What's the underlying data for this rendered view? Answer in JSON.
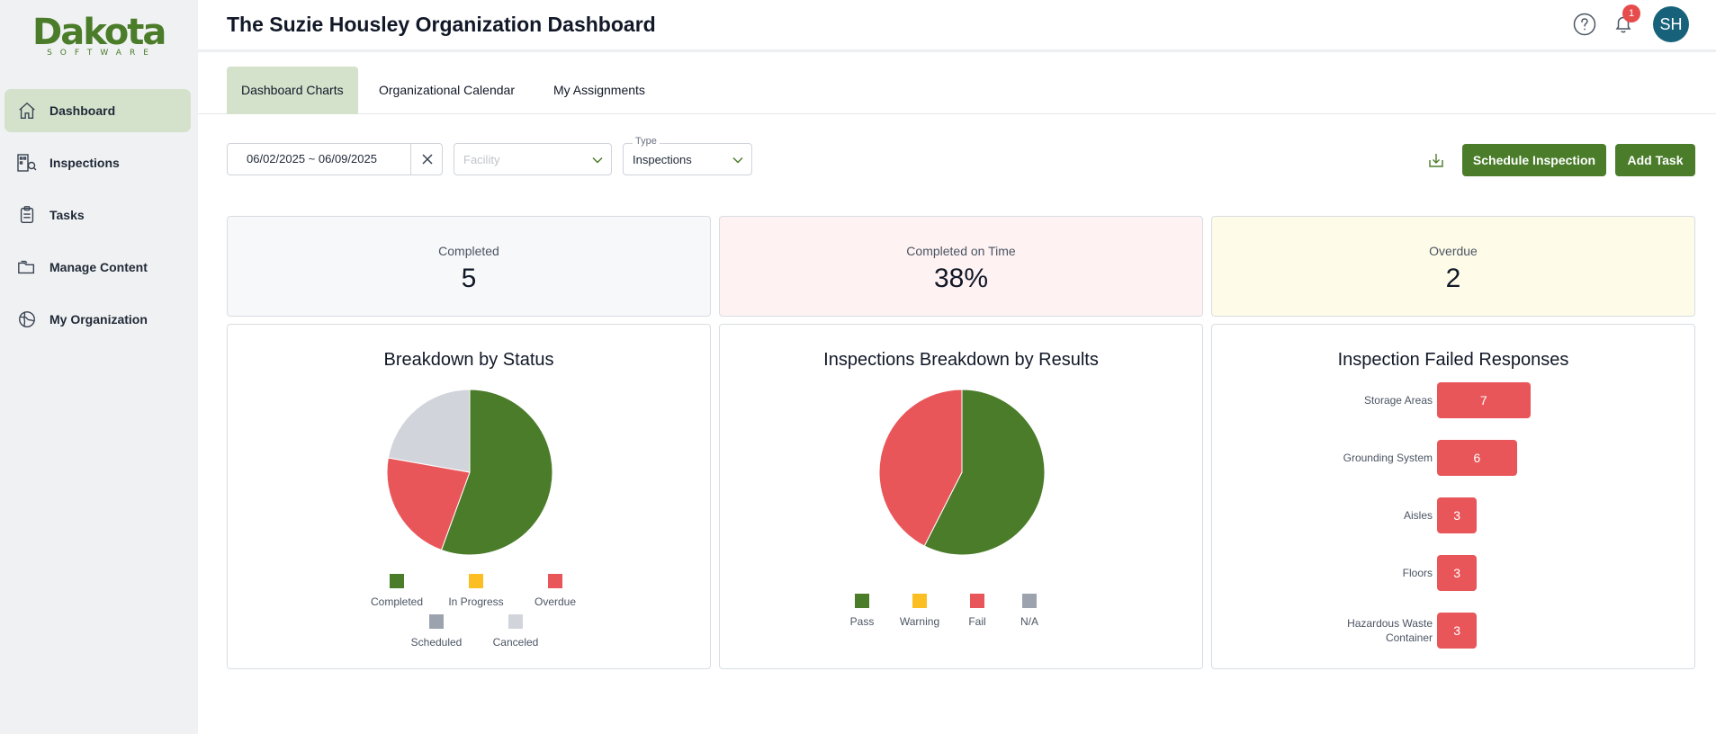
{
  "sidebar": {
    "logo": {
      "word": "Dakota",
      "sub": "SOFTWARE"
    },
    "items": [
      {
        "label": "Dashboard",
        "icon": "home-icon",
        "active": true
      },
      {
        "label": "Inspections",
        "icon": "inspections-icon"
      },
      {
        "label": "Tasks",
        "icon": "clipboard-icon"
      },
      {
        "label": "Manage Content",
        "icon": "folder-icon"
      },
      {
        "label": "My Organization",
        "icon": "globe-icon"
      }
    ]
  },
  "header": {
    "title": "The Suzie Housley Organization Dashboard",
    "notification_count": "1",
    "avatar_initials": "SH"
  },
  "tabs": [
    {
      "label": "Dashboard Charts",
      "active": true
    },
    {
      "label": "Organizational Calendar"
    },
    {
      "label": "My Assignments"
    }
  ],
  "filters": {
    "date_range": "06/02/2025 ~ 06/09/2025",
    "facility_placeholder": "Facility",
    "type_label": "Type",
    "type_value": "Inspections"
  },
  "actions": {
    "schedule_label": "Schedule Inspection",
    "add_task_label": "Add Task"
  },
  "kpis": {
    "completed": {
      "label": "Completed",
      "value": "5"
    },
    "on_time": {
      "label": "Completed on Time",
      "value": "38%"
    },
    "overdue": {
      "label": "Overdue",
      "value": "2"
    }
  },
  "colors": {
    "brand": "#4a7c2a",
    "fail": "#e9565a",
    "warning": "#fbbf24",
    "scheduled": "#9ca3af",
    "canceled": "#d1d5db"
  },
  "chart_data": [
    {
      "type": "pie",
      "title": "Breakdown by Status",
      "categories": [
        "Completed",
        "In Progress",
        "Overdue",
        "Scheduled",
        "Canceled"
      ],
      "values": [
        5,
        0,
        2,
        0,
        2
      ],
      "colors": [
        "#4a7c2a",
        "#fbbf24",
        "#e9565a",
        "#9ca3af",
        "#d1d5db"
      ]
    },
    {
      "type": "pie",
      "title": "Inspections Breakdown by Results",
      "categories": [
        "Pass",
        "Warning",
        "Fail",
        "N/A"
      ],
      "values": [
        57.5,
        0,
        42.5,
        0
      ],
      "colors": [
        "#4a7c2a",
        "#fbbf24",
        "#e9565a",
        "#9ca3af"
      ]
    },
    {
      "type": "bar",
      "orientation": "horizontal",
      "title": "Inspection Failed Responses",
      "categories": [
        "Storage Areas",
        "Grounding System",
        "Aisles",
        "Floors",
        "Hazardous Waste Container"
      ],
      "values": [
        7,
        6,
        3,
        3,
        3
      ]
    }
  ]
}
